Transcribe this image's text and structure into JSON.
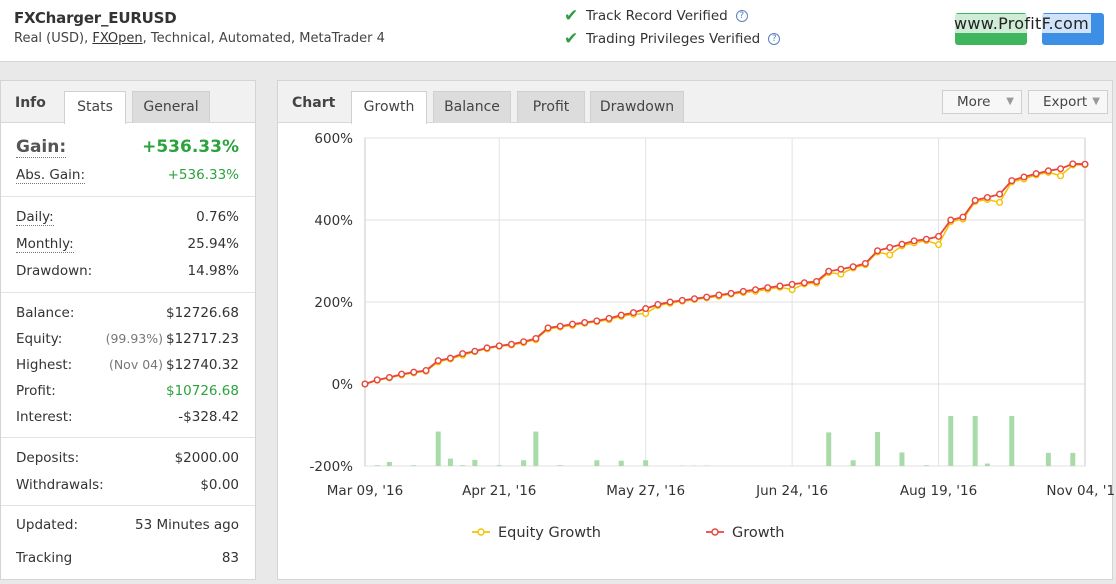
{
  "header": {
    "account_name": "FXCharger_EURUSD",
    "meta_prefix": "Real (USD),",
    "broker": "FXOpen",
    "meta_suffix": ", Technical, Automated, MetaTrader 4",
    "verified_1": "Track Record Verified",
    "verified_2": "Trading Privileges Verified",
    "help_glyph": "?",
    "watermark": "www.ProfitF.com",
    "colors": {
      "green_button": "#3fb55d",
      "blue_button": "#3d8fe6"
    }
  },
  "left_panel": {
    "title": "Info",
    "tabs": [
      "Stats",
      "General"
    ],
    "gain": {
      "label": "Gain:",
      "value": "+536.33%"
    },
    "abs_gain": {
      "label": "Abs. Gain:",
      "value": "+536.33%"
    },
    "daily": {
      "label": "Daily:",
      "value": "0.76%"
    },
    "monthly": {
      "label": "Monthly:",
      "value": "25.94%"
    },
    "drawdown": {
      "label": "Drawdown:",
      "value": "14.98%"
    },
    "balance": {
      "label": "Balance:",
      "value": "$12726.68"
    },
    "equity": {
      "label": "Equity:",
      "sub": "(99.93%)",
      "value": "$12717.23"
    },
    "highest": {
      "label": "Highest:",
      "sub": "(Nov 04)",
      "value": "$12740.32"
    },
    "profit": {
      "label": "Profit:",
      "value": "$10726.68"
    },
    "interest": {
      "label": "Interest:",
      "value": "-$328.42"
    },
    "deposits": {
      "label": "Deposits:",
      "value": "$2000.00"
    },
    "withdrawals": {
      "label": "Withdrawals:",
      "value": "$0.00"
    },
    "updated": {
      "label": "Updated:",
      "value": "53 Minutes ago"
    },
    "tracking": {
      "label": "Tracking",
      "value": "83"
    }
  },
  "chart_panel": {
    "title": "Chart",
    "tabs": [
      "Growth",
      "Balance",
      "Profit",
      "Drawdown"
    ],
    "active_tab": "Growth",
    "more_label": "More",
    "export_label": "Export",
    "caret": "▼"
  },
  "chart_data": {
    "type": "line",
    "ylim": [
      -200,
      600
    ],
    "y_ticks": [
      -200,
      0,
      200,
      400,
      600
    ],
    "y_tick_labels": [
      "-200%",
      "0%",
      "200%",
      "400%",
      "600%"
    ],
    "x_tick_labels": [
      "Mar 09, '16",
      "Apr 21, '16",
      "May 27, '16",
      "Jun 24, '16",
      "Aug 19, '16",
      "Nov 04, '16"
    ],
    "x_tick_index": [
      0,
      11,
      23,
      35,
      47,
      59
    ],
    "legend": [
      "Equity Growth",
      "Growth"
    ],
    "legend_placement": "bottom",
    "grid": true,
    "colors": {
      "growth": "#e8453c",
      "equity": "#f5c200",
      "bars": "#a8dba8"
    },
    "series": [
      {
        "name": "Growth",
        "values": [
          0,
          10,
          16,
          24,
          29,
          33,
          57,
          63,
          74,
          80,
          88,
          93,
          97,
          103,
          111,
          137,
          141,
          146,
          150,
          154,
          160,
          168,
          174,
          184,
          194,
          200,
          204,
          208,
          212,
          217,
          221,
          226,
          230,
          235,
          239,
          243,
          247,
          250,
          275,
          280,
          286,
          294,
          325,
          333,
          341,
          349,
          353,
          360,
          400,
          407,
          448,
          455,
          463,
          496,
          505,
          513,
          520,
          525,
          537,
          536
        ]
      },
      {
        "name": "Equity Growth",
        "values": [
          0,
          9,
          15,
          22,
          27,
          31,
          54,
          61,
          70,
          79,
          86,
          92,
          95,
          101,
          108,
          134,
          139,
          143,
          148,
          152,
          157,
          165,
          170,
          172,
          191,
          197,
          202,
          206,
          210,
          214,
          219,
          223,
          226,
          231,
          236,
          230,
          244,
          246,
          272,
          268,
          283,
          291,
          322,
          315,
          337,
          344,
          350,
          340,
          396,
          402,
          445,
          450,
          443,
          493,
          500,
          510,
          516,
          508,
          534,
          535
        ]
      }
    ],
    "bar_values": [
      -200,
      -198,
      -190,
      -200,
      -198,
      -200,
      -116,
      -182,
      -198,
      -185,
      -200,
      -198,
      -200,
      -186,
      -116,
      -200,
      -198,
      -200,
      -200,
      -186,
      -200,
      -187,
      -200,
      -186,
      -200,
      -200,
      -199,
      -199,
      -199,
      -200,
      -200,
      -200,
      -200,
      -200,
      -200,
      -200,
      -200,
      -200,
      -118,
      -200,
      -186,
      -200,
      -117,
      -200,
      -167,
      -200,
      -198,
      -200,
      -78,
      -200,
      -78,
      -194,
      -200,
      -78,
      -200,
      -200,
      -168,
      -200,
      -168,
      -200
    ]
  }
}
